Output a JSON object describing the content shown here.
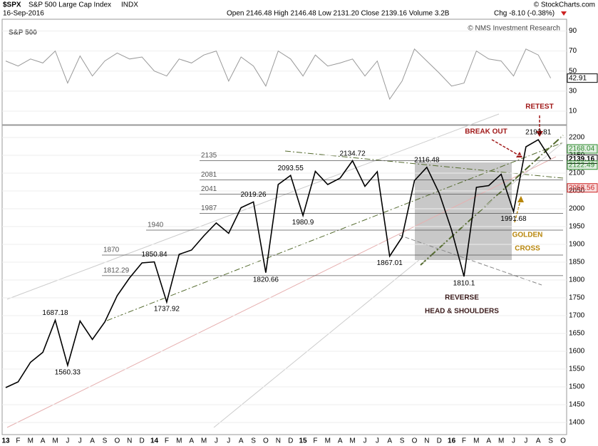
{
  "header": {
    "symbol": "$SPX",
    "name": "S&P 500 Large Cap Index",
    "exchange": "INDX",
    "date": "16-Sep-2016",
    "ohlc": "Open 2146.48 High 2146.48 Low 2131.20 Close 2139.16 Volume 3.2B",
    "change": "Chg -8.10 (-0.38%)",
    "credit": "© StockCharts.com"
  },
  "chart_data": [
    {
      "type": "line",
      "color": "#999999",
      "values": [
        60,
        55,
        62,
        58,
        70,
        38,
        65,
        45,
        60,
        68,
        62,
        64,
        50,
        45,
        62,
        58,
        66,
        70,
        40,
        64,
        55,
        35,
        70,
        62,
        45,
        66,
        55,
        58,
        62,
        45,
        60,
        22,
        40,
        72,
        60,
        48,
        35,
        38,
        70,
        62,
        60,
        45,
        72,
        66,
        42.91,
        null
      ],
      "ylim": [
        0,
        96
      ],
      "yticks": [
        10,
        30,
        50,
        70,
        90
      ],
      "last_value": 42.91
    },
    {
      "type": "line",
      "title": "S&P 500",
      "subtitle": "© NMS Investment Research",
      "color": "#000000",
      "categories": [
        "13",
        "F",
        "M",
        "A",
        "M",
        "J",
        "J",
        "A",
        "S",
        "O",
        "N",
        "D",
        "14",
        "F",
        "M",
        "A",
        "M",
        "J",
        "J",
        "A",
        "S",
        "O",
        "N",
        "D",
        "15",
        "F",
        "M",
        "A",
        "M",
        "J",
        "J",
        "A",
        "S",
        "O",
        "N",
        "D",
        "16",
        "F",
        "M",
        "A",
        "M",
        "J",
        "J",
        "A",
        "S",
        "O"
      ],
      "values": [
        1498,
        1514,
        1569,
        1597,
        1687.18,
        1560.33,
        1685,
        1633,
        1682,
        1756,
        1806,
        1848,
        1850.84,
        1737.92,
        1872,
        1884,
        1924,
        1960,
        1931,
        2003,
        2019.26,
        1820.66,
        2068,
        2093.55,
        1980.9,
        2105,
        2068,
        2086,
        2134.72,
        2063,
        2104,
        1867.01,
        1920,
        2079,
        2116.48,
        2044,
        1940,
        1810.1,
        2060,
        2065,
        2097,
        1991.68,
        2174,
        2193.81,
        2139.16,
        null
      ],
      "pivots": [
        null,
        null,
        null,
        null,
        1687.18,
        1560.33,
        null,
        null,
        null,
        null,
        null,
        null,
        1850.84,
        1737.92,
        null,
        null,
        null,
        null,
        null,
        null,
        2019.26,
        1820.66,
        null,
        2093.55,
        1980.9,
        null,
        null,
        null,
        2134.72,
        null,
        null,
        1867.01,
        null,
        null,
        2116.48,
        null,
        null,
        1810.1,
        null,
        null,
        null,
        1991.68,
        null,
        2193.81,
        null,
        null
      ],
      "levels": [
        2135,
        2081,
        2041,
        1987,
        1940,
        1870,
        1812.29
      ],
      "price_tags": [
        {
          "value": 2168.04,
          "color": "#2e8b2e"
        },
        {
          "value": 2139.16,
          "color": "#000000"
        },
        {
          "value": 2122.49,
          "color": "#2e8b2e"
        },
        {
          "value": 2058.56,
          "color": "#cc2222"
        }
      ],
      "ylim": [
        1372,
        2230
      ],
      "yticks": [
        1400,
        1450,
        1500,
        1550,
        1600,
        1650,
        1700,
        1750,
        1800,
        1850,
        1900,
        1950,
        2000,
        2050,
        2100,
        2150,
        2200
      ],
      "grid": true,
      "annotations": [
        {
          "text": "RETEST",
          "color": "#a01818"
        },
        {
          "text": "BREAK OUT",
          "color": "#a01818"
        },
        {
          "text": "GOLDEN",
          "color": "#b8860b"
        },
        {
          "text": "CROSS",
          "color": "#b8860b"
        },
        {
          "text": "REVERSE",
          "color": "#3a1a1a"
        },
        {
          "text": "HEAD & SHOULDERS",
          "color": "#3a1a1a"
        }
      ]
    }
  ]
}
